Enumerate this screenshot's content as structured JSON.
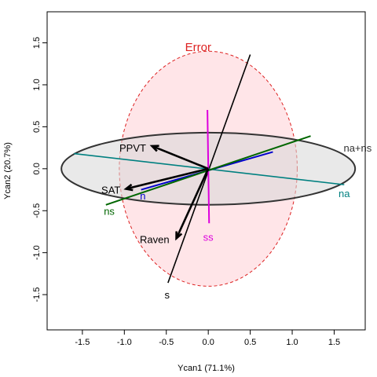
{
  "chart_data": {
    "type": "scatter",
    "xlabel": "Ycan1 (71.1%)",
    "ylabel": "Ycan2 (20.7%)",
    "xlim": [
      -1.92,
      1.87
    ],
    "ylim": [
      -1.92,
      1.87
    ],
    "x_ticks": [
      -1.5,
      -1.0,
      -0.5,
      0.0,
      0.5,
      1.0,
      1.5
    ],
    "y_ticks": [
      -1.5,
      -1.0,
      -0.5,
      0.0,
      0.5,
      1.0,
      1.5
    ],
    "x_tick_labels": [
      "-1.5",
      "-1.0",
      "-0.5",
      "0.0",
      "0.5",
      "1.0",
      "1.5"
    ],
    "y_tick_labels": [
      "-1.5",
      "-1.0",
      "-0.5",
      "0.0",
      "0.5",
      "1.0",
      "1.5"
    ],
    "grid": false,
    "colors": {
      "error_fill": "#ffe0e4",
      "error_stroke": "#dd2222",
      "effect_fill": "#d7d7d7",
      "effect_stroke": "#333333",
      "arrows": "#000000",
      "s": "#000000",
      "ss": "#dd00dd",
      "n": "#0000cc",
      "na": "#008080",
      "ns": "#006600",
      "na_ns": "#333333",
      "error_label": "#dd2222"
    },
    "ellipses": [
      {
        "name": "Error",
        "cx": 0.0,
        "cy": 0.0,
        "rx": 1.06,
        "ry": 1.4,
        "angle": 0
      },
      {
        "name": "na+ns",
        "cx": 0.0,
        "cy": 0.0,
        "rx": 1.75,
        "ry": 0.43,
        "angle": 0
      }
    ],
    "ellipse_labels": [
      {
        "text": "Error",
        "x": -0.12,
        "y": 1.45,
        "color_key": "error_label"
      },
      {
        "text": "na+ns",
        "x": 1.78,
        "y": 0.25,
        "color_key": "na_ns"
      }
    ],
    "variable_arrows": [
      {
        "name": "PPVT",
        "x": -0.67,
        "y": 0.27,
        "label_x": -0.9,
        "label_y": 0.25
      },
      {
        "name": "SAT",
        "x": -0.98,
        "y": -0.24,
        "label_x": -1.16,
        "label_y": -0.25
      },
      {
        "name": "Raven",
        "x": -0.38,
        "y": -0.83,
        "label_x": -0.64,
        "label_y": -0.84
      }
    ],
    "term_lines": [
      {
        "name": "s",
        "x1": 0.5,
        "y1": 1.36,
        "x2": -0.48,
        "y2": -1.36,
        "color_key": "s",
        "label_x": -0.49,
        "label_y": -1.5
      },
      {
        "name": "ss",
        "x1": -0.01,
        "y1": 0.7,
        "x2": 0.01,
        "y2": -0.65,
        "color_key": "ss",
        "label_x": 0.0,
        "label_y": -0.81
      },
      {
        "name": "n",
        "x1": 0.77,
        "y1": 0.2,
        "x2": -0.8,
        "y2": -0.25,
        "color_key": "n",
        "label_x": -0.78,
        "label_y": -0.32
      },
      {
        "name": "na",
        "x1": -1.6,
        "y1": 0.18,
        "x2": 1.62,
        "y2": -0.19,
        "color_key": "na",
        "label_x": 1.62,
        "label_y": -0.29
      },
      {
        "name": "ns",
        "x1": 1.22,
        "y1": 0.39,
        "x2": -1.22,
        "y2": -0.43,
        "color_key": "ns",
        "label_x": -1.18,
        "label_y": -0.5
      }
    ]
  }
}
